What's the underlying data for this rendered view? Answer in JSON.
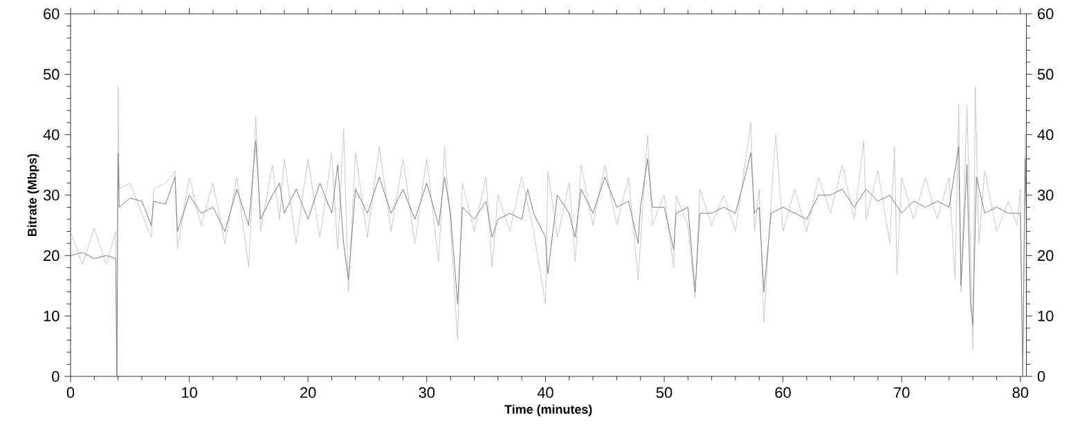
{
  "chart_data": {
    "type": "line",
    "xlabel": "Time (minutes)",
    "ylabel": "Bitrate (Mbps)",
    "xlim": [
      0,
      80.5
    ],
    "xticks": [
      0,
      10,
      20,
      30,
      40,
      50,
      60,
      70,
      80
    ],
    "ylim": [
      0,
      60
    ],
    "yticks": [
      0,
      10,
      20,
      30,
      40,
      50,
      60
    ],
    "y2lim": [
      0,
      60
    ],
    "y2ticks": [
      0,
      10,
      20,
      30,
      40,
      50,
      60
    ],
    "marker": "none",
    "line_style": "solid",
    "series": [
      {
        "color": "#c8c8c8",
        "x": [
          0,
          1,
          2,
          3,
          3.8,
          3.9,
          4.0,
          4.1,
          5,
          6,
          6.8,
          7,
          8,
          8.8,
          9,
          10,
          11,
          12,
          13,
          14,
          15,
          15.6,
          16,
          17,
          17.6,
          18,
          19,
          20,
          21,
          22,
          22.5,
          23,
          23.4,
          24,
          25,
          26,
          27,
          28,
          29,
          30,
          31,
          31.5,
          32,
          32.6,
          33,
          34,
          35,
          35.5,
          36,
          37,
          38,
          39,
          40,
          40.2,
          41,
          42,
          42.5,
          43,
          44,
          45,
          46,
          47,
          47.8,
          48.6,
          49,
          50,
          50.8,
          51,
          52,
          52.6,
          53,
          54,
          55,
          56,
          57.3,
          57.6,
          58,
          58.4,
          59,
          59.4,
          60,
          61,
          62,
          63,
          64,
          65,
          66,
          66.8,
          67,
          68,
          69,
          69.4,
          69.6,
          70,
          71,
          72,
          73,
          74,
          74.5,
          74.8,
          75,
          75.5,
          76,
          76.2,
          76.5,
          77,
          78,
          79,
          79.7,
          80,
          80.2,
          80.4,
          80.5
        ],
        "values": [
          24,
          18.5,
          24.5,
          18.5,
          24,
          0,
          48,
          31,
          32,
          27,
          23,
          31,
          32,
          34,
          21,
          33,
          25,
          32,
          22,
          33,
          18,
          43,
          24,
          35,
          26,
          36,
          22,
          36,
          23,
          37,
          21,
          41,
          14,
          37,
          23,
          38,
          24,
          36,
          22,
          36,
          19,
          38,
          25,
          6,
          32,
          24,
          33,
          18,
          30,
          24,
          33,
          24,
          12,
          34,
          23,
          32,
          19,
          35,
          25,
          35,
          25,
          33,
          16,
          40,
          25,
          30,
          18,
          30,
          25,
          13,
          31,
          25,
          30,
          24,
          42,
          24,
          31,
          9,
          29,
          40,
          24,
          31,
          24,
          33,
          27,
          35,
          26,
          39,
          26,
          34,
          22,
          38,
          17,
          33,
          26,
          33,
          26,
          33,
          16,
          45,
          14,
          45,
          4.5,
          48,
          22,
          34,
          24,
          29,
          25,
          31,
          0,
          40,
          27
        ]
      },
      {
        "color": "#808080",
        "x": [
          0,
          1,
          2,
          3,
          3.8,
          3.9,
          4.0,
          4.1,
          5,
          6,
          6.8,
          7,
          8,
          8.8,
          9,
          10,
          11,
          12,
          13,
          14,
          15,
          15.6,
          16,
          17,
          17.6,
          18,
          19,
          20,
          21,
          22,
          22.5,
          23,
          23.4,
          24,
          25,
          26,
          27,
          28,
          29,
          30,
          31,
          31.5,
          32,
          32.6,
          33,
          34,
          35,
          35.5,
          36,
          37,
          38,
          38.5,
          39,
          40,
          40.2,
          41,
          42,
          42.5,
          43,
          44,
          45,
          46,
          47,
          47.8,
          48,
          48.6,
          49,
          50,
          50.8,
          51,
          52,
          52.6,
          53,
          54,
          55,
          56,
          56.8,
          57.3,
          57.6,
          58,
          58.4,
          59,
          60,
          61,
          62,
          63,
          64,
          65,
          66,
          67,
          68,
          69,
          70,
          71,
          72,
          73,
          74,
          74.8,
          75,
          75.5,
          75.8,
          76,
          76.3,
          77,
          78,
          79,
          80,
          80.2,
          80.4,
          80.5
        ],
        "values": [
          20,
          20.5,
          19.5,
          20,
          19.5,
          0,
          37,
          28,
          29.5,
          29,
          25,
          29,
          28.5,
          33,
          24,
          30,
          27,
          28,
          24,
          31,
          25,
          39,
          26,
          30,
          32,
          27,
          31,
          26,
          32,
          27,
          35,
          22,
          16,
          31,
          27,
          33,
          27,
          31,
          26,
          32,
          25,
          33,
          27,
          12,
          28,
          26,
          29,
          23,
          26,
          27,
          26,
          31,
          27,
          23,
          17,
          30,
          27,
          23,
          31,
          27,
          33,
          28,
          29,
          22,
          28,
          36,
          28,
          28,
          21,
          27,
          28,
          14,
          27,
          27,
          28,
          27,
          33,
          37,
          27,
          28,
          14,
          27,
          28,
          27,
          26,
          30,
          30,
          31,
          28,
          31,
          29,
          30,
          27,
          29,
          28,
          29,
          28,
          38,
          15,
          35,
          12,
          8.5,
          33,
          27,
          28,
          27,
          27,
          0,
          36,
          28
        ]
      }
    ]
  }
}
